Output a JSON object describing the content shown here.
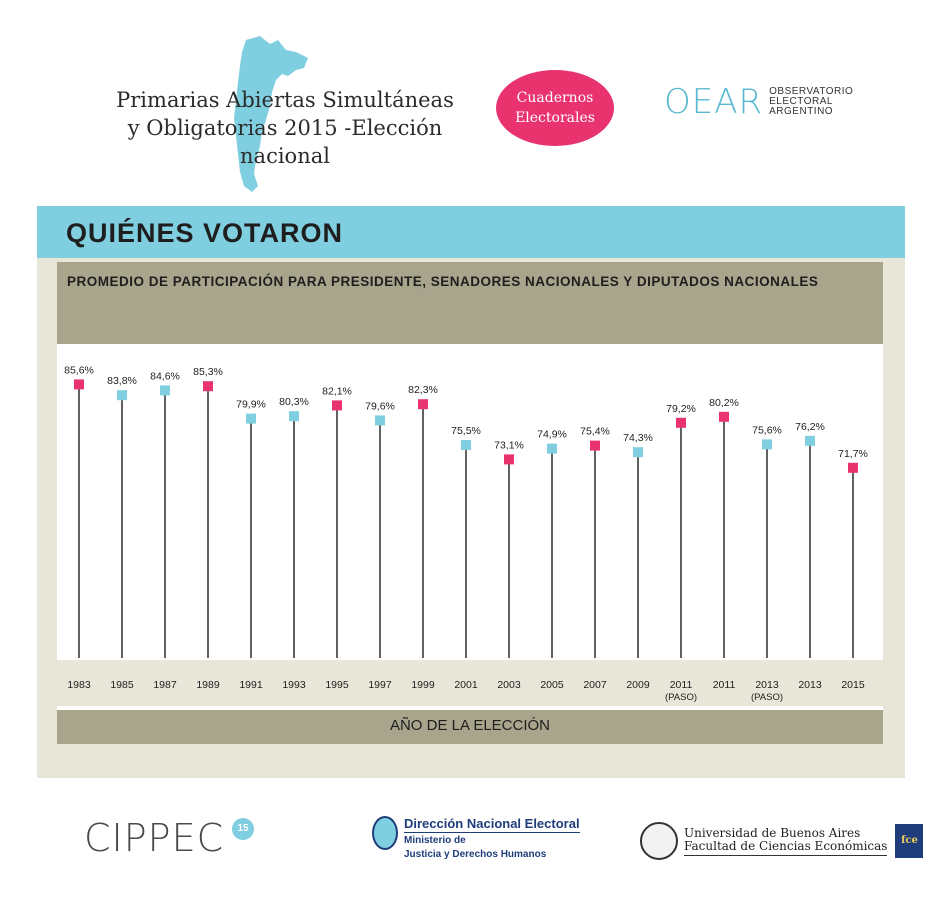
{
  "header": {
    "title_line1": "Primarias Abiertas Simultáneas",
    "title_line2": "y Obligatorias 2015 -Elección nacional",
    "badge_line1": "Cuadernos",
    "badge_line2": "Electorales",
    "oear_mark": "OEAR",
    "oear_line1": "OBSERVATORIO",
    "oear_line2": "ELECTORAL",
    "oear_line3": "ARGENTINO"
  },
  "section": {
    "title": "QUIÉNES VOTARON"
  },
  "chart_data": {
    "type": "scatter",
    "title": "PROMEDIO DE PARTICIPACIÓN PARA PRESIDENTE, SENADORES NACIONALES Y DIPUTADOS NACIONALES",
    "xlabel": "AÑO DE  LA ELECCIÓN",
    "ylabel": "",
    "categories": [
      [
        "1983"
      ],
      [
        "1985"
      ],
      [
        "1987"
      ],
      [
        "1989"
      ],
      [
        "1991"
      ],
      [
        "1993"
      ],
      [
        "1995"
      ],
      [
        "1997"
      ],
      [
        "1999"
      ],
      [
        "2001"
      ],
      [
        "2003"
      ],
      [
        "2005"
      ],
      [
        "2007"
      ],
      [
        "2009"
      ],
      [
        "2011",
        "(PASO)"
      ],
      [
        "2011"
      ],
      [
        "2013",
        "(PASO)"
      ],
      [
        "2013"
      ],
      [
        "2015"
      ]
    ],
    "values": [
      85.6,
      83.8,
      84.6,
      85.3,
      79.9,
      80.3,
      82.1,
      79.6,
      82.3,
      75.5,
      73.1,
      74.9,
      75.4,
      74.3,
      79.2,
      80.2,
      75.6,
      76.2,
      71.7
    ],
    "value_labels": [
      "85,6%",
      "83,8%",
      "84,6%",
      "85,3%",
      "79,9%",
      "80,3%",
      "82,1%",
      "79,6%",
      "82,3%",
      "75,5%",
      "73,1%",
      "74,9%",
      "75,4%",
      "74,3%",
      "79,2%",
      "80,2%",
      "75,6%",
      "76,2%",
      "71,7%"
    ],
    "marker_types": [
      "p",
      "c",
      "c",
      "p",
      "c",
      "c",
      "p",
      "c",
      "p",
      "c",
      "p",
      "c",
      "p",
      "c",
      "p",
      "p",
      "c",
      "c",
      "p"
    ],
    "colors": {
      "p": "#e8336f",
      "c": "#7fcfe0"
    },
    "ylim": [
      40,
      90
    ],
    "grid": false,
    "legend": "none"
  },
  "footer": {
    "cippec": "CIPPEC",
    "cippec_badge": "15",
    "dne_title": "Dirección Nacional Electoral",
    "dne_sub1": "Ministerio de",
    "dne_sub2": "Justicia y Derechos Humanos",
    "uba_line1": "Universidad de Buenos Aires",
    "uba_line2": "Facultad de Ciencias Económicas",
    "fce": "fce"
  }
}
